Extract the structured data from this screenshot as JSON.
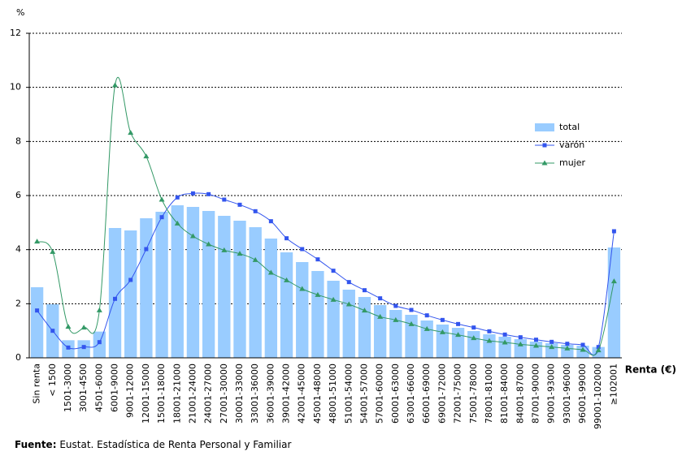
{
  "chart_data": {
    "type": "combo",
    "y_label": "%",
    "x_label": "Renta (€)",
    "source_label": "Fuente:",
    "source_text": "Eustat. Estadística de Renta Personal y Familiar",
    "categories": [
      "Sin renta",
      "< 1500",
      "1501-3000",
      "3001-4500",
      "4501-6000",
      "6001-9000",
      "9001-12000",
      "12001-15000",
      "15001-18000",
      "18001-21000",
      "21001-24000",
      "24001-27000",
      "27001-30000",
      "30001-33000",
      "33001-36000",
      "36001-39000",
      "39001-42000",
      "42001-45000",
      "45001-48000",
      "48001-51000",
      "51001-54000",
      "54001-57000",
      "57001-60000",
      "60001-63000",
      "63001-66000",
      "66001-69000",
      "69001-72000",
      "72001-75000",
      "75001-78000",
      "78001-81000",
      "81001-84000",
      "84001-87000",
      "87001-90000",
      "90001-93000",
      "93001-96000",
      "96001-99000",
      "99001-102000",
      "≥102001"
    ],
    "series": [
      {
        "name": "total",
        "type": "bar",
        "color": "#99ccff",
        "values": [
          2.61,
          1.98,
          0.65,
          0.65,
          0.97,
          4.8,
          4.71,
          5.16,
          5.4,
          5.64,
          5.58,
          5.43,
          5.25,
          5.07,
          4.83,
          4.41,
          3.9,
          3.54,
          3.21,
          2.85,
          2.52,
          2.25,
          1.95,
          1.77,
          1.59,
          1.38,
          1.23,
          1.11,
          0.99,
          0.87,
          0.78,
          0.69,
          0.6,
          0.54,
          0.48,
          0.45,
          0.4,
          4.08
        ]
      },
      {
        "name": "varón",
        "type": "line",
        "marker": "square",
        "color": "#3355ee",
        "values": [
          1.75,
          1.0,
          0.38,
          0.4,
          0.58,
          2.18,
          2.88,
          4.02,
          5.2,
          5.93,
          6.08,
          6.05,
          5.85,
          5.66,
          5.42,
          5.05,
          4.42,
          4.02,
          3.64,
          3.22,
          2.8,
          2.5,
          2.2,
          1.92,
          1.77,
          1.57,
          1.4,
          1.25,
          1.12,
          0.98,
          0.86,
          0.76,
          0.67,
          0.59,
          0.52,
          0.48,
          0.4,
          4.68
        ]
      },
      {
        "name": "mujer",
        "type": "line",
        "marker": "triangle",
        "color": "#339966",
        "values": [
          4.3,
          3.92,
          1.15,
          1.12,
          1.76,
          10.08,
          8.32,
          7.45,
          5.85,
          4.97,
          4.5,
          4.2,
          3.98,
          3.85,
          3.62,
          3.15,
          2.87,
          2.55,
          2.33,
          2.15,
          1.98,
          1.75,
          1.52,
          1.4,
          1.25,
          1.07,
          0.95,
          0.85,
          0.73,
          0.63,
          0.57,
          0.5,
          0.45,
          0.4,
          0.35,
          0.3,
          0.28,
          2.83
        ]
      }
    ],
    "ylim": [
      0,
      12
    ],
    "yticks": [
      0,
      2,
      4,
      6,
      8,
      10,
      12
    ],
    "grid": true,
    "legend": "right"
  }
}
